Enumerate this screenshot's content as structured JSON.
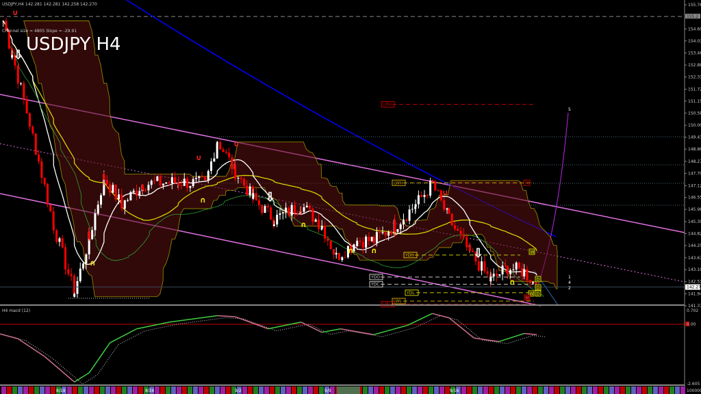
{
  "header": {
    "symbol_info": "USDJPY,H4  142.281 142.281 142.258 142.270",
    "channel_info": "Channel size = 4805  Slope = -29.91",
    "title": "USDJPY H4"
  },
  "macd_panel": {
    "label": "H4  macd (12)",
    "ticks": [
      "0.702",
      "0.00",
      "-2.605"
    ],
    "tick_values": [
      0.702,
      0,
      -2.605
    ],
    "volume_label": "100000"
  },
  "colors": {
    "bull_candle": "#ffffff",
    "bear_candle": "#ff0000",
    "channel": "#e070e0",
    "trendline": "#0000ff",
    "fast_ma": "#ffffff",
    "slow_ma": "#d4d400",
    "macd_up": "#40d040",
    "macd_down": "#d07090",
    "zero_line": "#c00000"
  },
  "levels": [
    {
      "label": "LMH",
      "price": 151.0,
      "color": "#c00000"
    },
    {
      "label": "LWH",
      "price": 147.25,
      "color": "#c8a000"
    },
    {
      "label": "M",
      "price": 147.25,
      "color": "#c00000"
    },
    {
      "label": "YDH",
      "price": 143.8,
      "color": "#c8c800"
    },
    {
      "label": "YDO",
      "price": 142.75,
      "color": "#c8c8c8"
    },
    {
      "label": "YDC",
      "price": 142.4,
      "color": "#c8c8c8"
    },
    {
      "label": "YDL",
      "price": 142.0,
      "color": "#c8c800"
    },
    {
      "label": "LWL",
      "price": 141.6,
      "color": "#c8a000"
    },
    {
      "label": "LML",
      "price": 141.45,
      "color": "#c00000"
    }
  ],
  "right_labels": [
    "W",
    "D",
    "D",
    "W",
    "D",
    "M"
  ],
  "projection_labels": [
    "5",
    "1",
    "4",
    "2"
  ],
  "chart_data": {
    "type": "candlestick",
    "title": "USDJPY H4",
    "x_ticks": [
      "8/19",
      "8/26",
      "9/2",
      "9/9",
      "9/16"
    ],
    "y_ticks": [
      "155.760",
      "154.605",
      "154.035",
      "153.460",
      "152.880",
      "152.310",
      "151.725",
      "151.155",
      "150.585",
      "150.000",
      "149.430",
      "148.860",
      "148.275",
      "147.705",
      "147.120",
      "146.550",
      "145.980",
      "145.395",
      "144.825",
      "144.255",
      "143.670",
      "143.100",
      "142.530",
      "141.945",
      "141.375"
    ],
    "y_tick_values": [
      155.76,
      154.605,
      154.035,
      153.46,
      152.88,
      152.31,
      151.725,
      151.155,
      150.585,
      150.0,
      149.43,
      148.86,
      148.275,
      147.705,
      147.12,
      146.55,
      145.98,
      145.395,
      144.825,
      144.255,
      143.67,
      143.1,
      142.53,
      141.945,
      141.375
    ],
    "ylim": [
      141.375,
      155.76
    ],
    "highlighted_price": "155.2",
    "current_price": "142.270",
    "current_price_value": 142.27,
    "grid": false,
    "price_path": [
      {
        "t": "8/13 20:00",
        "close": 155.0
      },
      {
        "t": "8/14 08:00",
        "close": 153.4
      },
      {
        "t": "8/15 12:00",
        "close": 149.5
      },
      {
        "t": "8/16 16:00",
        "close": 145.2
      },
      {
        "t": "8/19 20:00",
        "close": 142.0
      },
      {
        "t": "8/20 16:00",
        "close": 144.6
      },
      {
        "t": "8/21 12:00",
        "close": 147.5
      },
      {
        "t": "8/22 12:00",
        "close": 146.2
      },
      {
        "t": "8/23 16:00",
        "close": 147.2
      },
      {
        "t": "8/27 16:00",
        "close": 147.3
      },
      {
        "t": "8/29 04:00",
        "close": 147.2
      },
      {
        "t": "8/29 20:00",
        "close": 149.3
      },
      {
        "t": "8/30 20:00",
        "close": 147.8
      },
      {
        "t": "9/2 20:00",
        "close": 146.5
      },
      {
        "t": "9/4 00:00",
        "close": 145.5
      },
      {
        "t": "9/5 12:00",
        "close": 146.2
      },
      {
        "t": "9/6 16:00",
        "close": 145.2
      },
      {
        "t": "9/9 08:00",
        "close": 143.7
      },
      {
        "t": "9/10 04:00",
        "close": 144.5
      },
      {
        "t": "9/10 20:00",
        "close": 144.5
      },
      {
        "t": "9/11 16:00",
        "close": 145.2
      },
      {
        "t": "9/12 12:00",
        "close": 146.2
      },
      {
        "t": "9/13 04:00",
        "close": 147.2
      },
      {
        "t": "9/13 20:00",
        "close": 145.5
      },
      {
        "t": "9/16 16:00",
        "close": 143.9
      },
      {
        "t": "9/17 12:00",
        "close": 142.6
      },
      {
        "t": "9/18 04:00",
        "close": 143.2
      },
      {
        "t": "9/18 20:00",
        "close": 143.0
      },
      {
        "t": "9/19 08:00",
        "close": 142.27
      }
    ],
    "macd_path": [
      {
        "t": "8/13 08:00",
        "v": -0.35
      },
      {
        "t": "8/14 16:00",
        "v": -0.63
      },
      {
        "t": "8/16 04:00",
        "v": -1.4
      },
      {
        "t": "8/19 20:00",
        "v": -2.5
      },
      {
        "t": "8/20 16:00",
        "v": -2.1
      },
      {
        "t": "8/21 20:00",
        "v": -0.8
      },
      {
        "t": "8/23 08:00",
        "v": -0.2
      },
      {
        "t": "8/27 04:00",
        "v": 0.1
      },
      {
        "t": "8/29 20:00",
        "v": 0.4
      },
      {
        "t": "8/30 20:00",
        "v": 0.35
      },
      {
        "t": "9/3 16:00",
        "v": -0.2
      },
      {
        "t": "9/5 12:00",
        "v": 0.1
      },
      {
        "t": "9/6 16:00",
        "v": -0.35
      },
      {
        "t": "9/9 12:00",
        "v": -0.2
      },
      {
        "t": "9/10 20:00",
        "v": -0.45
      },
      {
        "t": "9/12 04:00",
        "v": -0.05
      },
      {
        "t": "9/13 04:00",
        "v": 0.5
      },
      {
        "t": "9/13 20:00",
        "v": 0.3
      },
      {
        "t": "9/16 20:00",
        "v": -0.6
      },
      {
        "t": "9/17 20:00",
        "v": -0.75
      },
      {
        "t": "9/18 20:00",
        "v": -0.4
      },
      {
        "t": "9/19 08:00",
        "v": -0.45
      }
    ]
  }
}
